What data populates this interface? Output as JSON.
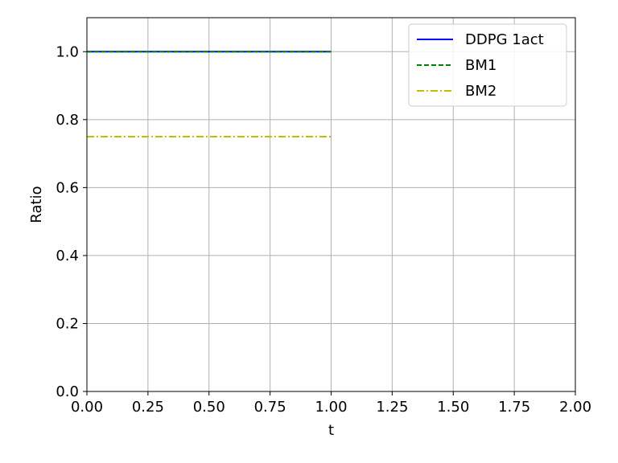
{
  "chart_data": {
    "type": "line",
    "xlabel": "t",
    "ylabel": "Ratio",
    "xlim": [
      0,
      2
    ],
    "ylim": [
      0,
      1.1
    ],
    "xticks": [
      0,
      0.25,
      0.5,
      0.75,
      1.0,
      1.25,
      1.5,
      1.75,
      2.0
    ],
    "xtick_labels": [
      "0.00",
      "0.25",
      "0.50",
      "0.75",
      "1.00",
      "1.25",
      "1.50",
      "1.75",
      "2.00"
    ],
    "yticks": [
      0,
      0.2,
      0.4,
      0.6,
      0.8,
      1.0
    ],
    "ytick_labels": [
      "0.0",
      "0.2",
      "0.4",
      "0.6",
      "0.8",
      "1.0"
    ],
    "grid": true,
    "legend_position": "top-right",
    "series": [
      {
        "name": "DDPG 1act",
        "color": "#0000ff",
        "linestyle": "solid",
        "x": [
          0,
          1.0
        ],
        "y": [
          1.0,
          1.0
        ]
      },
      {
        "name": "BM1",
        "color": "#008000",
        "linestyle": "dashed",
        "x": [
          0,
          1.0
        ],
        "y": [
          1.0,
          1.0
        ]
      },
      {
        "name": "BM2",
        "color": "#bfbf00",
        "linestyle": "dashdot",
        "x": [
          0,
          1.0
        ],
        "y": [
          0.75,
          0.75
        ]
      }
    ]
  }
}
